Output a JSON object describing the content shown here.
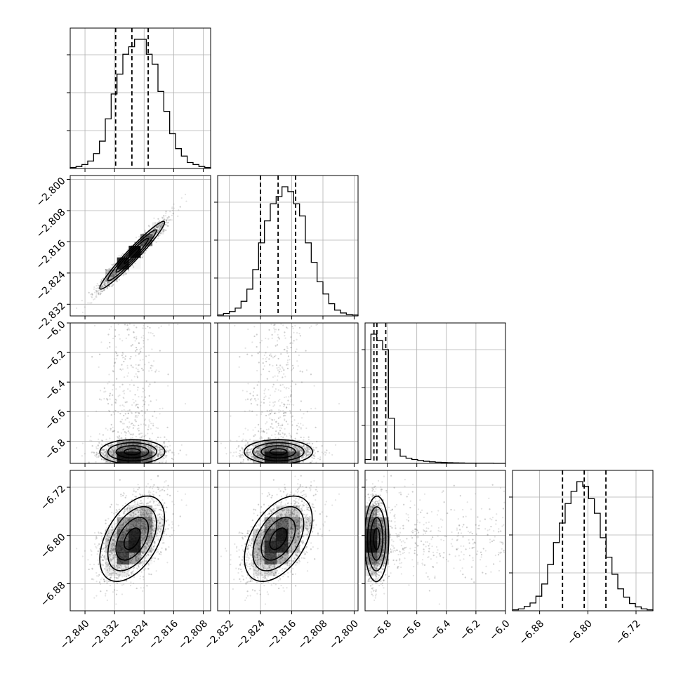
{
  "figure": {
    "background": "#ffffff",
    "axis_color": "#000000",
    "grid_color": "#b0b0b0",
    "point_color": "#808080",
    "density_color": "#000000"
  },
  "chart_data": {
    "type": "corner",
    "grid": true,
    "quantile_lines": "dashed",
    "parameters": [
      {
        "range": [
          -2.844,
          -2.806
        ],
        "ticks": [
          -2.84,
          -2.832,
          -2.824,
          -2.816,
          -2.808
        ],
        "tick_labels": [
          "−2.840",
          "−2.832",
          "−2.824",
          "−2.816",
          "−2.808"
        ],
        "mean": -2.8273,
        "std": 0.0045,
        "quantiles": [
          -2.8317,
          -2.8273,
          -2.8229
        ]
      },
      {
        "range": [
          -2.835,
          -2.799
        ],
        "ticks": [
          -2.832,
          -2.824,
          -2.816,
          -2.808,
          -2.8
        ],
        "tick_labels": [
          "−2.832",
          "−2.824",
          "−2.816",
          "−2.808",
          "−2.800"
        ],
        "mean": -2.8195,
        "std": 0.0045,
        "quantiles": [
          -2.824,
          -2.8195,
          -2.815
        ]
      },
      {
        "range": [
          -6.95,
          -6.0
        ],
        "ticks": [
          -6.8,
          -6.6,
          -6.4,
          -6.2,
          -6.0
        ],
        "tick_labels": [
          "−6.8",
          "−6.6",
          "−6.4",
          "−6.2",
          "−6.0"
        ],
        "quantiles": [
          -6.89,
          -6.87,
          -6.81
        ]
      },
      {
        "range": [
          -6.925,
          -6.692
        ],
        "ticks": [
          -6.88,
          -6.8,
          -6.72
        ],
        "tick_labels": [
          "−6.88",
          "−6.80",
          "−6.72"
        ],
        "mean": -6.806,
        "std": 0.036,
        "quantiles": [
          -6.842,
          -6.806,
          -6.77
        ]
      }
    ],
    "histograms": [
      [
        2,
        4,
        8,
        15,
        30,
        55,
        100,
        150,
        190,
        230,
        245,
        260,
        260,
        230,
        210,
        155,
        115,
        70,
        40,
        25,
        12,
        8,
        4,
        2
      ],
      [
        2,
        5,
        9,
        16,
        30,
        55,
        95,
        150,
        195,
        230,
        245,
        265,
        255,
        230,
        205,
        150,
        110,
        70,
        45,
        25,
        12,
        6,
        3,
        2
      ],
      [
        30,
        1000,
        950,
        880,
        350,
        110,
        55,
        40,
        30,
        22,
        16,
        12,
        9,
        7,
        5,
        4,
        3,
        2,
        2,
        1,
        1,
        1,
        0,
        0
      ],
      [
        2,
        4,
        9,
        16,
        30,
        55,
        95,
        140,
        180,
        220,
        245,
        265,
        255,
        230,
        200,
        150,
        110,
        75,
        45,
        28,
        15,
        8,
        4,
        2
      ]
    ],
    "correlations": {
      "0-1": 0.97,
      "0-3": 0.5,
      "1-3": 0.5
    },
    "y_tick_labels_rows": [
      [],
      [
        "−2.800",
        "−2.808",
        "−2.816",
        "−2.824",
        "−2.832"
      ],
      [
        "−6.0",
        "−6.2",
        "−6.4",
        "−6.6",
        "−6.8"
      ],
      [
        "−6.72",
        "−6.80",
        "−6.88"
      ]
    ]
  }
}
